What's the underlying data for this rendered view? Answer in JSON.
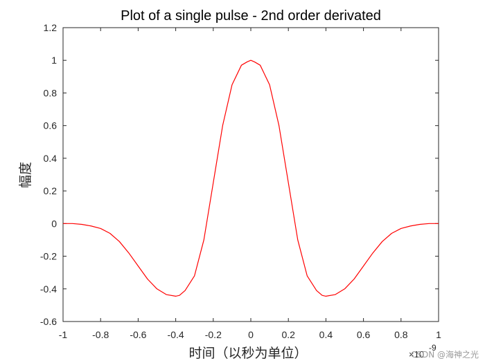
{
  "chart_data": {
    "type": "line",
    "title": "Plot of a single pulse - 2nd order derivated",
    "xlabel": "时间（以秒为单位）",
    "ylabel": "幅度",
    "x_exponent_label": "×10",
    "x_exponent_power": "-9",
    "xlim": [
      -1,
      1
    ],
    "ylim": [
      -0.6,
      1.2
    ],
    "x_ticks": [
      -1,
      -0.8,
      -0.6,
      -0.4,
      -0.2,
      0,
      0.2,
      0.4,
      0.6,
      0.8,
      1
    ],
    "x_tick_labels": [
      "-1",
      "-0.8",
      "-0.6",
      "-0.4",
      "-0.2",
      "0",
      "0.2",
      "0.4",
      "0.6",
      "0.8",
      "1"
    ],
    "y_ticks": [
      -0.6,
      -0.4,
      -0.2,
      0,
      0.2,
      0.4,
      0.6,
      0.8,
      1,
      1.2
    ],
    "y_tick_labels": [
      "-0.6",
      "-0.4",
      "-0.2",
      "0",
      "0.2",
      "0.4",
      "0.6",
      "0.8",
      "1",
      "1.2"
    ],
    "grid": false,
    "series": [
      {
        "color": "#ff0000",
        "x": [
          -1.0,
          -0.95,
          -0.9,
          -0.85,
          -0.8,
          -0.75,
          -0.7,
          -0.65,
          -0.6,
          -0.55,
          -0.5,
          -0.45,
          -0.4,
          -0.38,
          -0.35,
          -0.3,
          -0.25,
          -0.2,
          -0.15,
          -0.1,
          -0.05,
          -0.02,
          0.0,
          0.02,
          0.05,
          0.1,
          0.15,
          0.2,
          0.25,
          0.3,
          0.35,
          0.38,
          0.4,
          0.45,
          0.5,
          0.55,
          0.6,
          0.65,
          0.7,
          0.75,
          0.8,
          0.85,
          0.9,
          0.95,
          1.0
        ],
        "y": [
          0.0,
          0.0,
          -0.005,
          -0.015,
          -0.03,
          -0.06,
          -0.11,
          -0.18,
          -0.26,
          -0.34,
          -0.4,
          -0.435,
          -0.445,
          -0.44,
          -0.41,
          -0.32,
          -0.1,
          0.25,
          0.6,
          0.85,
          0.97,
          0.99,
          1.0,
          0.99,
          0.97,
          0.85,
          0.6,
          0.25,
          -0.1,
          -0.32,
          -0.41,
          -0.44,
          -0.445,
          -0.435,
          -0.4,
          -0.34,
          -0.26,
          -0.18,
          -0.11,
          -0.06,
          -0.03,
          -0.015,
          -0.005,
          0.0,
          0.0
        ]
      }
    ]
  },
  "watermark": "CSDN @海神之光"
}
